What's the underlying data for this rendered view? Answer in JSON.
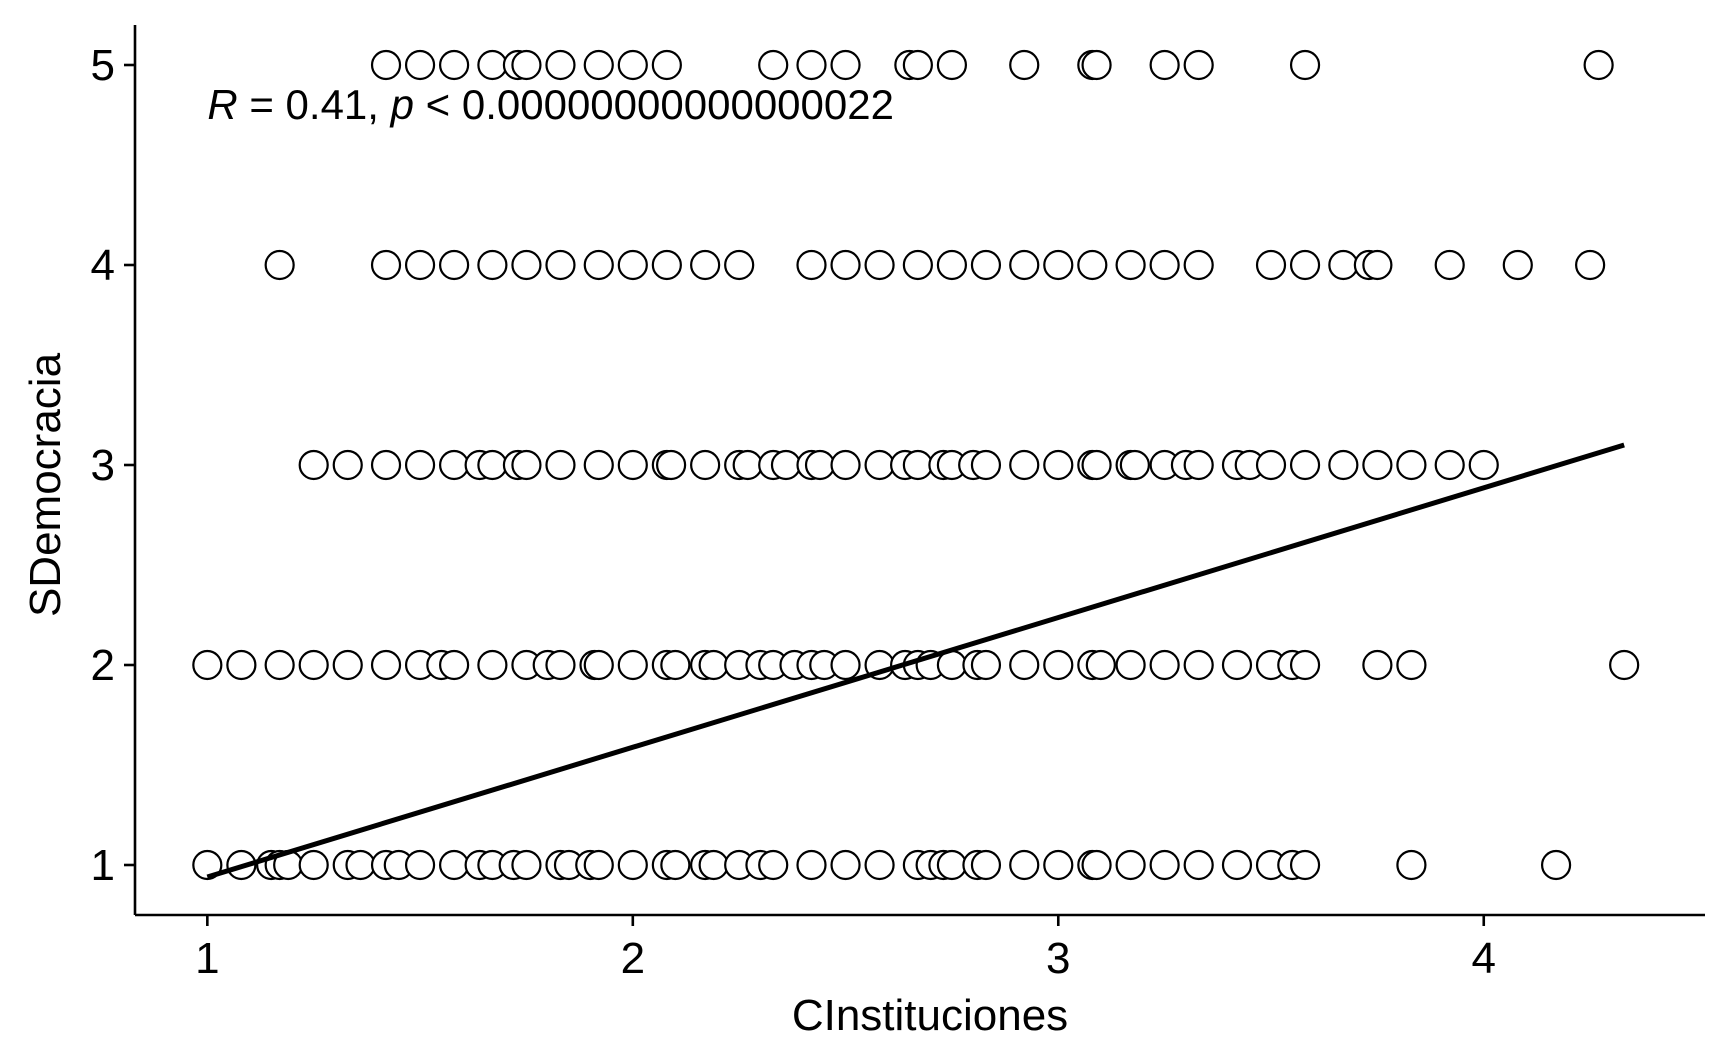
{
  "chart_data": {
    "type": "scatter",
    "xlabel": "CInstituciones",
    "ylabel": "SDemocracia",
    "xlim": [
      0.83,
      4.52
    ],
    "ylim": [
      0.75,
      5.2
    ],
    "x_ticks": [
      1,
      2,
      3,
      4
    ],
    "y_ticks": [
      1,
      2,
      3,
      4,
      5
    ],
    "grid": false,
    "annotation": {
      "r_symbol": "R",
      "r_text": " = 0.41, ",
      "p_symbol": "p",
      "p_text": " < 0.00000000000000022"
    },
    "fit_line": {
      "x": [
        1.0,
        4.33
      ],
      "y": [
        0.94,
        3.1
      ]
    },
    "points": [
      [
        1.42,
        5
      ],
      [
        1.5,
        5
      ],
      [
        1.58,
        5
      ],
      [
        1.67,
        5
      ],
      [
        1.73,
        5
      ],
      [
        1.75,
        5
      ],
      [
        1.83,
        5
      ],
      [
        1.92,
        5
      ],
      [
        2.0,
        5
      ],
      [
        2.08,
        5
      ],
      [
        2.33,
        5
      ],
      [
        2.42,
        5
      ],
      [
        2.5,
        5
      ],
      [
        2.65,
        5
      ],
      [
        2.67,
        5
      ],
      [
        2.75,
        5
      ],
      [
        2.92,
        5
      ],
      [
        3.08,
        5
      ],
      [
        3.09,
        5
      ],
      [
        3.25,
        5
      ],
      [
        3.33,
        5
      ],
      [
        3.58,
        5
      ],
      [
        4.27,
        5
      ],
      [
        1.17,
        4
      ],
      [
        1.42,
        4
      ],
      [
        1.5,
        4
      ],
      [
        1.58,
        4
      ],
      [
        1.67,
        4
      ],
      [
        1.75,
        4
      ],
      [
        1.83,
        4
      ],
      [
        1.92,
        4
      ],
      [
        2.0,
        4
      ],
      [
        2.08,
        4
      ],
      [
        2.17,
        4
      ],
      [
        2.25,
        4
      ],
      [
        2.42,
        4
      ],
      [
        2.5,
        4
      ],
      [
        2.58,
        4
      ],
      [
        2.67,
        4
      ],
      [
        2.75,
        4
      ],
      [
        2.83,
        4
      ],
      [
        2.92,
        4
      ],
      [
        3.0,
        4
      ],
      [
        3.08,
        4
      ],
      [
        3.17,
        4
      ],
      [
        3.25,
        4
      ],
      [
        3.33,
        4
      ],
      [
        3.5,
        4
      ],
      [
        3.58,
        4
      ],
      [
        3.67,
        4
      ],
      [
        3.73,
        4
      ],
      [
        3.75,
        4
      ],
      [
        3.92,
        4
      ],
      [
        4.08,
        4
      ],
      [
        4.25,
        4
      ],
      [
        1.25,
        3
      ],
      [
        1.33,
        3
      ],
      [
        1.42,
        3
      ],
      [
        1.5,
        3
      ],
      [
        1.58,
        3
      ],
      [
        1.64,
        3
      ],
      [
        1.67,
        3
      ],
      [
        1.73,
        3
      ],
      [
        1.75,
        3
      ],
      [
        1.83,
        3
      ],
      [
        1.92,
        3
      ],
      [
        2.0,
        3
      ],
      [
        2.08,
        3
      ],
      [
        2.09,
        3
      ],
      [
        2.17,
        3
      ],
      [
        2.25,
        3
      ],
      [
        2.27,
        3
      ],
      [
        2.33,
        3
      ],
      [
        2.36,
        3
      ],
      [
        2.42,
        3
      ],
      [
        2.44,
        3
      ],
      [
        2.5,
        3
      ],
      [
        2.58,
        3
      ],
      [
        2.64,
        3
      ],
      [
        2.67,
        3
      ],
      [
        2.73,
        3
      ],
      [
        2.75,
        3
      ],
      [
        2.8,
        3
      ],
      [
        2.83,
        3
      ],
      [
        2.92,
        3
      ],
      [
        3.0,
        3
      ],
      [
        3.08,
        3
      ],
      [
        3.09,
        3
      ],
      [
        3.17,
        3
      ],
      [
        3.18,
        3
      ],
      [
        3.25,
        3
      ],
      [
        3.3,
        3
      ],
      [
        3.33,
        3
      ],
      [
        3.42,
        3
      ],
      [
        3.45,
        3
      ],
      [
        3.5,
        3
      ],
      [
        3.58,
        3
      ],
      [
        3.67,
        3
      ],
      [
        3.75,
        3
      ],
      [
        3.83,
        3
      ],
      [
        3.92,
        3
      ],
      [
        4.0,
        3
      ],
      [
        1.0,
        2
      ],
      [
        1.08,
        2
      ],
      [
        1.17,
        2
      ],
      [
        1.25,
        2
      ],
      [
        1.33,
        2
      ],
      [
        1.42,
        2
      ],
      [
        1.5,
        2
      ],
      [
        1.55,
        2
      ],
      [
        1.58,
        2
      ],
      [
        1.67,
        2
      ],
      [
        1.75,
        2
      ],
      [
        1.8,
        2
      ],
      [
        1.83,
        2
      ],
      [
        1.91,
        2
      ],
      [
        1.92,
        2
      ],
      [
        2.0,
        2
      ],
      [
        2.08,
        2
      ],
      [
        2.1,
        2
      ],
      [
        2.17,
        2
      ],
      [
        2.19,
        2
      ],
      [
        2.25,
        2
      ],
      [
        2.3,
        2
      ],
      [
        2.33,
        2
      ],
      [
        2.38,
        2
      ],
      [
        2.42,
        2
      ],
      [
        2.45,
        2
      ],
      [
        2.5,
        2
      ],
      [
        2.58,
        2
      ],
      [
        2.64,
        2
      ],
      [
        2.67,
        2
      ],
      [
        2.7,
        2
      ],
      [
        2.75,
        2
      ],
      [
        2.81,
        2
      ],
      [
        2.83,
        2
      ],
      [
        2.92,
        2
      ],
      [
        3.0,
        2
      ],
      [
        3.08,
        2
      ],
      [
        3.1,
        2
      ],
      [
        3.17,
        2
      ],
      [
        3.25,
        2
      ],
      [
        3.33,
        2
      ],
      [
        3.42,
        2
      ],
      [
        3.5,
        2
      ],
      [
        3.55,
        2
      ],
      [
        3.58,
        2
      ],
      [
        3.75,
        2
      ],
      [
        3.83,
        2
      ],
      [
        4.33,
        2
      ],
      [
        1.0,
        1
      ],
      [
        1.08,
        1
      ],
      [
        1.15,
        1
      ],
      [
        1.17,
        1
      ],
      [
        1.19,
        1
      ],
      [
        1.25,
        1
      ],
      [
        1.33,
        1
      ],
      [
        1.36,
        1
      ],
      [
        1.42,
        1
      ],
      [
        1.45,
        1
      ],
      [
        1.5,
        1
      ],
      [
        1.58,
        1
      ],
      [
        1.64,
        1
      ],
      [
        1.67,
        1
      ],
      [
        1.72,
        1
      ],
      [
        1.75,
        1
      ],
      [
        1.83,
        1
      ],
      [
        1.85,
        1
      ],
      [
        1.9,
        1
      ],
      [
        1.92,
        1
      ],
      [
        2.0,
        1
      ],
      [
        2.08,
        1
      ],
      [
        2.1,
        1
      ],
      [
        2.17,
        1
      ],
      [
        2.19,
        1
      ],
      [
        2.25,
        1
      ],
      [
        2.3,
        1
      ],
      [
        2.33,
        1
      ],
      [
        2.42,
        1
      ],
      [
        2.5,
        1
      ],
      [
        2.58,
        1
      ],
      [
        2.67,
        1
      ],
      [
        2.7,
        1
      ],
      [
        2.73,
        1
      ],
      [
        2.75,
        1
      ],
      [
        2.81,
        1
      ],
      [
        2.83,
        1
      ],
      [
        2.92,
        1
      ],
      [
        3.0,
        1
      ],
      [
        3.08,
        1
      ],
      [
        3.09,
        1
      ],
      [
        3.17,
        1
      ],
      [
        3.25,
        1
      ],
      [
        3.33,
        1
      ],
      [
        3.42,
        1
      ],
      [
        3.5,
        1
      ],
      [
        3.55,
        1
      ],
      [
        3.58,
        1
      ],
      [
        3.83,
        1
      ],
      [
        4.17,
        1
      ]
    ]
  }
}
